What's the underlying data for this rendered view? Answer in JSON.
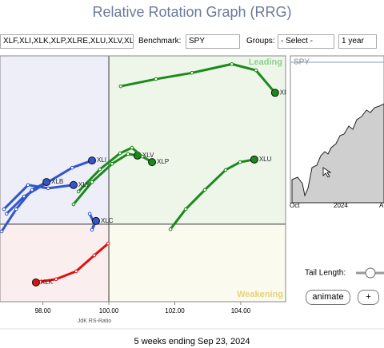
{
  "header": {
    "title": "Relative Rotation Graph (RRG)"
  },
  "controls": {
    "symbols": "XLF,XLI,XLK,XLP,XLRE,XLU,XLV,XL",
    "benchmark_label": "Benchmark:",
    "benchmark": "SPY",
    "groups_label": "Groups:",
    "groups": "- Select -",
    "period": "1 year"
  },
  "chart_data": {
    "type": "scatter",
    "x_label": "JdK RS-Ratio",
    "quadrant_labels": {
      "leading": "Leading",
      "weakening": "Weakening"
    },
    "xlim": [
      96.7,
      105.36
    ],
    "ylim": [
      97.63,
      105.15
    ],
    "xticks": [
      {
        "value": 98,
        "label": "98.00"
      },
      {
        "value": 100,
        "label": "100.00"
      },
      {
        "value": 102,
        "label": "102.00"
      },
      {
        "value": 104,
        "label": "104.00"
      }
    ],
    "series": [
      {
        "name": "XLRE",
        "color": "#1a8a1a",
        "x": [
          100.36,
          101.43,
          102.52,
          103.73,
          104.46,
          105.04
        ],
        "values": [
          104.22,
          104.44,
          104.63,
          104.9,
          104.71,
          104.02
        ]
      },
      {
        "name": "XLU",
        "color": "#1a8a1a",
        "x": [
          101.87,
          102.33,
          102.91,
          103.54,
          103.98,
          104.41
        ],
        "values": [
          99.85,
          100.46,
          101.05,
          101.66,
          101.9,
          101.98
        ]
      },
      {
        "name": "XLV",
        "color": "#1a8a1a",
        "x": [
          98.93,
          99.49,
          100.1,
          100.58,
          100.87
        ],
        "values": [
          100.61,
          101.29,
          101.85,
          102.15,
          102.1
        ]
      },
      {
        "name": "XLP",
        "color": "#1a8a1a",
        "x": [
          99.08,
          99.73,
          100.34,
          100.7,
          101.02,
          101.31
        ],
        "values": [
          101.0,
          101.68,
          102.17,
          102.34,
          102.07,
          101.9
        ]
      },
      {
        "name": "XLI",
        "color": "#3355cc",
        "x": [
          96.9,
          97.43,
          98.16,
          98.89,
          99.49
        ],
        "values": [
          100.32,
          100.85,
          101.29,
          101.73,
          101.95
        ]
      },
      {
        "name": "XLB",
        "color": "#3355cc",
        "x": [
          96.75,
          97.19,
          97.67,
          98.11
        ],
        "values": [
          99.78,
          100.46,
          101.05,
          101.29
        ]
      },
      {
        "name": "XLY",
        "color": "#3355cc",
        "x": [
          96.82,
          97.55,
          98.16,
          98.93
        ],
        "values": [
          100.46,
          101.2,
          101.1,
          101.2
        ]
      },
      {
        "name": "XLC",
        "color": "#3355cc",
        "x": [
          99.42,
          99.56,
          99.49,
          99.61
        ],
        "values": [
          100.32,
          100.02,
          99.83,
          100.1
        ]
      },
      {
        "name": "XLK",
        "color": "#dd1111",
        "x": [
          99.98,
          99.56,
          99.01,
          98.4,
          97.92,
          97.79
        ],
        "values": [
          99.41,
          99.05,
          98.56,
          98.32,
          98.24,
          98.22
        ]
      }
    ]
  },
  "side_panel": {
    "symbol": "SPY",
    "x_labels": [
      "Oct",
      "2024",
      "A"
    ],
    "tail_length_label": "Tail Length:",
    "animate": "animate",
    "plus": "+"
  },
  "footer": "5 weeks ending Sep 23, 2024"
}
